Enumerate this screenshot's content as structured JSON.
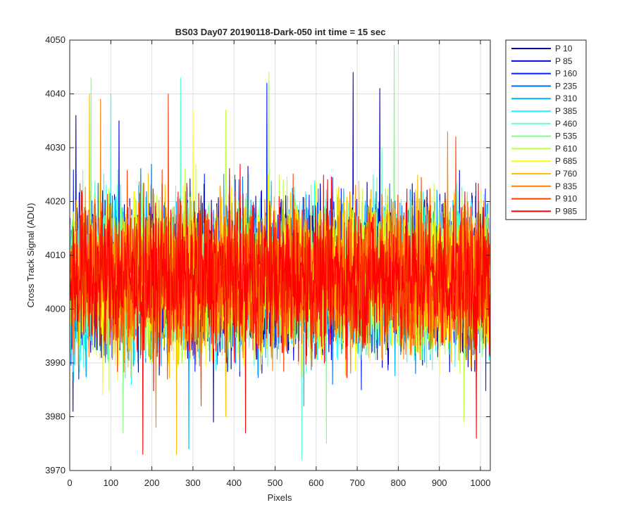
{
  "chart_data": {
    "type": "line",
    "title": "BS03 Day07 20190118-Dark-050 int time = 15 sec",
    "xlabel": "Pixels",
    "ylabel": "Cross Track Signal (ADU)",
    "xlim": [
      0,
      1024
    ],
    "ylim": [
      3970,
      4050
    ],
    "x_ticks": [
      0,
      100,
      200,
      300,
      400,
      500,
      600,
      700,
      800,
      900,
      1000
    ],
    "x_tick_labels": [
      "0",
      "100",
      "200",
      "300",
      "400",
      "500",
      "600",
      "700",
      "800",
      "900",
      "1000"
    ],
    "y_ticks": [
      3970,
      3980,
      3990,
      4000,
      4010,
      4020,
      4030,
      4040,
      4050
    ],
    "y_tick_labels": [
      "3970",
      "3980",
      "3990",
      "4000",
      "4010",
      "4020",
      "4030",
      "4040",
      "4050"
    ],
    "grid": true,
    "legend_position": "outside-top-right",
    "series": [
      {
        "name": "P 10",
        "color": "#00008f",
        "mean": 4006,
        "spread": 7,
        "spikes": [
          [
            290,
            3988
          ],
          [
            350,
            3979
          ]
        ]
      },
      {
        "name": "P 85",
        "color": "#0000d5",
        "mean": 4006,
        "spread": 7,
        "spikes": [
          [
            15,
            4036
          ],
          [
            120,
            4035
          ],
          [
            690,
            4044
          ],
          [
            755,
            4041
          ],
          [
            8,
            3981
          ]
        ]
      },
      {
        "name": "P 160",
        "color": "#0020ff",
        "mean": 4006,
        "spread": 7,
        "spikes": [
          [
            480,
            4042
          ],
          [
            790,
            4032
          ],
          [
            710,
            3985
          ]
        ]
      },
      {
        "name": "P 235",
        "color": "#0070ff",
        "mean": 4006,
        "spread": 7,
        "spikes": [
          [
            380,
            4031
          ],
          [
            640,
            3986
          ]
        ]
      },
      {
        "name": "P 310",
        "color": "#00b0ff",
        "mean": 4006,
        "spread": 7,
        "spikes": [
          [
            290,
            3974
          ],
          [
            570,
            3982
          ]
        ]
      },
      {
        "name": "P 385",
        "color": "#20ffff",
        "mean": 4006,
        "spread": 7,
        "spikes": [
          [
            100,
            4040
          ],
          [
            485,
            4042
          ],
          [
            150,
            3986
          ]
        ]
      },
      {
        "name": "P 460",
        "color": "#60ffcf",
        "mean": 4006,
        "spread": 7,
        "spikes": [
          [
            270,
            4043
          ],
          [
            565,
            3972
          ],
          [
            760,
            4030
          ]
        ]
      },
      {
        "name": "P 535",
        "color": "#80ff80",
        "mean": 4006,
        "spread": 7,
        "spikes": [
          [
            52,
            4043
          ],
          [
            790,
            4049
          ],
          [
            130,
            3977
          ],
          [
            625,
            3975
          ]
        ]
      },
      {
        "name": "P 610",
        "color": "#c0ff40",
        "mean": 4006,
        "spread": 7,
        "spikes": [
          [
            485,
            4044
          ],
          [
            380,
            4037
          ],
          [
            960,
            3979
          ]
        ]
      },
      {
        "name": "P 685",
        "color": "#ffff00",
        "mean": 4006,
        "spread": 7,
        "spikes": [
          [
            300,
            4037
          ],
          [
            80,
            3984
          ]
        ]
      },
      {
        "name": "P 760",
        "color": "#ffbf00",
        "mean": 4006,
        "spread": 7,
        "spikes": [
          [
            48,
            4040
          ],
          [
            260,
            3973
          ],
          [
            380,
            3980
          ]
        ]
      },
      {
        "name": "P 835",
        "color": "#ff8000",
        "mean": 4006,
        "spread": 7,
        "spikes": [
          [
            75,
            4039
          ],
          [
            210,
            3978
          ],
          [
            920,
            4033
          ]
        ]
      },
      {
        "name": "P 910",
        "color": "#ff4000",
        "mean": 4006,
        "spread": 7,
        "spikes": [
          [
            240,
            4040
          ],
          [
            940,
            4032
          ],
          [
            320,
            3982
          ]
        ]
      },
      {
        "name": "P 985",
        "color": "#ff0000",
        "mean": 4006,
        "spread": 7,
        "spikes": [
          [
            178,
            3973
          ],
          [
            428,
            3977
          ],
          [
            990,
            3976
          ]
        ]
      }
    ]
  }
}
